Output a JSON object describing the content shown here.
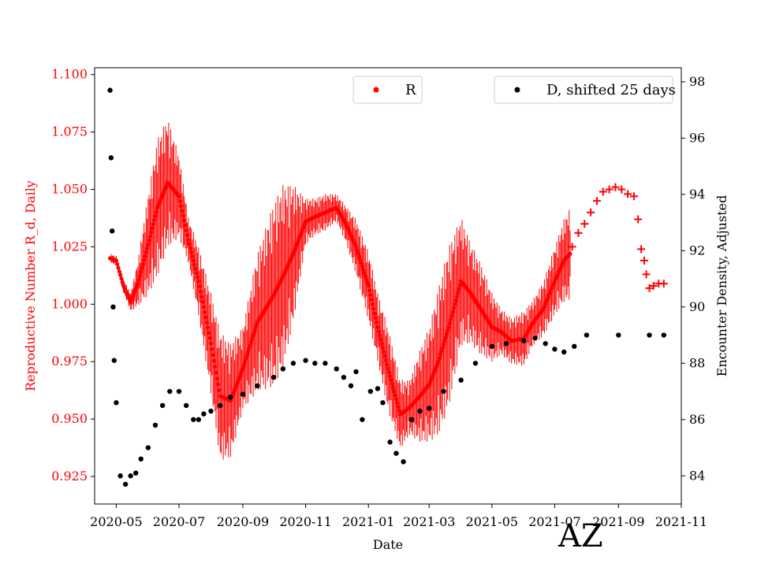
{
  "chart_data": {
    "type": "scatter",
    "title": "",
    "annotation": "AZ",
    "xlabel": "Date",
    "ylabel_left": "Reproductive Number R_d, Daily",
    "ylabel_right": "Encounter Density, Adjusted",
    "x_range": [
      "2020-04-10",
      "2021-11-01"
    ],
    "ylim_left": [
      0.913,
      1.103
    ],
    "ylim_right": [
      83.0,
      98.5
    ],
    "x_ticks": [
      "2020-05-01",
      "2020-07-01",
      "2020-09-01",
      "2020-11-01",
      "2021-01-01",
      "2021-03-01",
      "2021-05-01",
      "2021-07-01",
      "2021-09-01",
      "2021-11-01"
    ],
    "x_tick_labels": [
      "2020-05",
      "2020-07",
      "2020-09",
      "2020-11",
      "2021-01",
      "2021-03",
      "2021-05",
      "2021-07",
      "2021-09",
      "2021-11"
    ],
    "y_ticks_left": [
      "0.925",
      "0.950",
      "0.975",
      "1.000",
      "1.025",
      "1.050",
      "1.075",
      "1.100"
    ],
    "y_ticks_right": [
      "84",
      "86",
      "88",
      "90",
      "92",
      "94",
      "96",
      "98"
    ],
    "grid": false,
    "legends": [
      {
        "position": "top-center",
        "label": "R",
        "color": "#ff0000",
        "marker": "circle"
      },
      {
        "position": "top-right",
        "label": "D, shifted 25 days",
        "color": "#000000",
        "marker": "circle"
      }
    ],
    "colors": {
      "R": "#ff0000",
      "D": "#000000",
      "left_axis": "#ff0000"
    },
    "series": [
      {
        "name": "R",
        "axis": "left",
        "marker": "circle",
        "error_bars": true,
        "x": [
          "2020-04-25",
          "2020-05-01",
          "2020-05-08",
          "2020-05-15",
          "2020-05-22",
          "2020-06-01",
          "2020-06-10",
          "2020-06-20",
          "2020-07-01",
          "2020-07-10",
          "2020-07-20",
          "2020-08-01",
          "2020-08-10",
          "2020-08-20",
          "2020-09-01",
          "2020-09-15",
          "2020-10-01",
          "2020-10-10",
          "2020-10-20",
          "2020-11-01",
          "2020-11-10",
          "2020-11-20",
          "2020-12-01",
          "2020-12-10",
          "2020-12-20",
          "2021-01-01",
          "2021-01-10",
          "2021-01-20",
          "2021-02-01",
          "2021-02-10",
          "2021-02-20",
          "2021-03-01",
          "2021-03-10",
          "2021-03-20",
          "2021-04-01",
          "2021-04-10",
          "2021-04-20",
          "2021-05-01",
          "2021-05-10",
          "2021-05-20",
          "2021-06-01",
          "2021-06-10",
          "2021-06-20",
          "2021-07-01",
          "2021-07-10",
          "2021-07-16"
        ],
        "y": [
          1.02,
          1.019,
          1.008,
          1.001,
          1.009,
          1.026,
          1.042,
          1.053,
          1.047,
          1.028,
          1.01,
          0.983,
          0.96,
          0.958,
          0.972,
          0.992,
          1.004,
          1.012,
          1.022,
          1.036,
          1.038,
          1.04,
          1.042,
          1.035,
          1.025,
          1.008,
          0.99,
          0.972,
          0.952,
          0.955,
          0.96,
          0.965,
          0.975,
          0.99,
          1.01,
          1.005,
          0.998,
          0.99,
          0.988,
          0.984,
          0.985,
          0.992,
          0.998,
          1.01,
          1.019,
          1.022
        ],
        "err": [
          0.002,
          0.002,
          0.003,
          0.004,
          0.01,
          0.022,
          0.03,
          0.028,
          0.018,
          0.01,
          0.015,
          0.022,
          0.028,
          0.025,
          0.018,
          0.03,
          0.04,
          0.04,
          0.03,
          0.01,
          0.008,
          0.008,
          0.006,
          0.008,
          0.012,
          0.015,
          0.015,
          0.018,
          0.015,
          0.012,
          0.02,
          0.025,
          0.032,
          0.035,
          0.028,
          0.022,
          0.02,
          0.015,
          0.01,
          0.01,
          0.012,
          0.01,
          0.012,
          0.015,
          0.018,
          0.02
        ]
      },
      {
        "name": "R",
        "axis": "left",
        "marker": "plus",
        "error_bars": false,
        "x": [
          "2021-07-18",
          "2021-07-24",
          "2021-07-30",
          "2021-08-05",
          "2021-08-11",
          "2021-08-17",
          "2021-08-23",
          "2021-08-29",
          "2021-09-04",
          "2021-09-10",
          "2021-09-16",
          "2021-09-20",
          "2021-09-23",
          "2021-09-26",
          "2021-09-28",
          "2021-10-01",
          "2021-10-05",
          "2021-10-10",
          "2021-10-15"
        ],
        "y": [
          1.025,
          1.031,
          1.035,
          1.04,
          1.045,
          1.049,
          1.05,
          1.051,
          1.05,
          1.048,
          1.047,
          1.037,
          1.024,
          1.019,
          1.013,
          1.007,
          1.008,
          1.009,
          1.009
        ]
      },
      {
        "name": "D, shifted 25 days",
        "axis": "right",
        "marker": "circle",
        "x": [
          "2020-04-25",
          "2020-04-26",
          "2020-04-27",
          "2020-04-28",
          "2020-04-29",
          "2020-05-01",
          "2020-05-05",
          "2020-05-10",
          "2020-05-15",
          "2020-05-20",
          "2020-05-25",
          "2020-06-01",
          "2020-06-08",
          "2020-06-15",
          "2020-06-22",
          "2020-07-01",
          "2020-07-08",
          "2020-07-15",
          "2020-07-20",
          "2020-07-25",
          "2020-08-01",
          "2020-08-10",
          "2020-08-20",
          "2020-09-01",
          "2020-09-15",
          "2020-10-01",
          "2020-10-10",
          "2020-10-20",
          "2020-11-01",
          "2020-11-10",
          "2020-11-20",
          "2020-12-01",
          "2020-12-08",
          "2020-12-15",
          "2020-12-20",
          "2020-12-26",
          "2021-01-03",
          "2021-01-10",
          "2021-01-15",
          "2021-01-22",
          "2021-01-28",
          "2021-02-04",
          "2021-02-12",
          "2021-02-20",
          "2021-03-01",
          "2021-03-15",
          "2021-04-01",
          "2021-04-15",
          "2021-05-01",
          "2021-05-15",
          "2021-06-01",
          "2021-06-12",
          "2021-06-22",
          "2021-07-01",
          "2021-07-10",
          "2021-07-20",
          "2021-08-01",
          "2021-09-01",
          "2021-10-01",
          "2021-10-15"
        ],
        "y": [
          97.7,
          95.3,
          92.7,
          90.0,
          88.1,
          86.6,
          84.0,
          83.7,
          84.0,
          84.1,
          84.6,
          85.0,
          85.8,
          86.5,
          87.0,
          87.0,
          86.5,
          86.0,
          86.0,
          86.2,
          86.3,
          86.5,
          86.8,
          86.9,
          87.2,
          87.5,
          87.8,
          88.0,
          88.1,
          88.0,
          88.0,
          87.8,
          87.5,
          87.2,
          87.7,
          86.0,
          87.0,
          87.1,
          86.6,
          85.2,
          84.8,
          84.5,
          86.0,
          86.3,
          86.4,
          87.0,
          87.4,
          88.0,
          88.6,
          88.7,
          88.8,
          88.9,
          88.7,
          88.5,
          88.4,
          88.6,
          89.0,
          89.0,
          89.0,
          89.0
        ]
      }
    ]
  }
}
